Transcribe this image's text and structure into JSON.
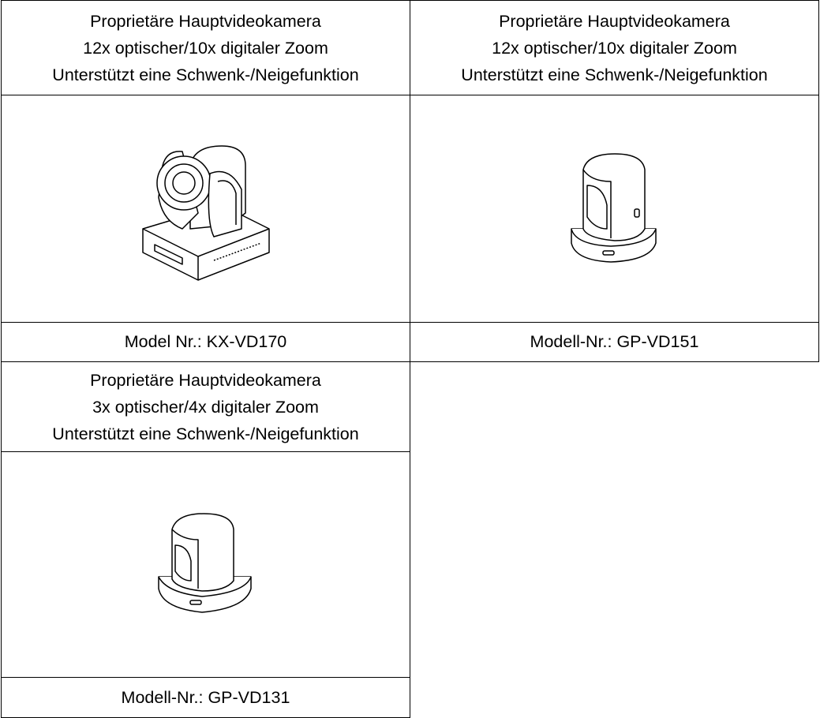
{
  "cameras": [
    {
      "description": [
        "Proprietäre Hauptvideokamera",
        "12x optischer/10x digitaler Zoom",
        "Unterstützt eine Schwenk-/Neigefunktion"
      ],
      "model": "Model Nr.: KX-VD170"
    },
    {
      "description": [
        "Proprietäre Hauptvideokamera",
        "12x optischer/10x digitaler Zoom",
        "Unterstützt eine Schwenk-/Neigefunktion"
      ],
      "model": "Modell-Nr.: GP-VD151"
    },
    {
      "description": [
        "Proprietäre Hauptvideokamera",
        "3x optischer/4x digitaler Zoom",
        "Unterstützt eine Schwenk-/Neigefunktion"
      ],
      "model": "Modell-Nr.: GP-VD131"
    }
  ]
}
